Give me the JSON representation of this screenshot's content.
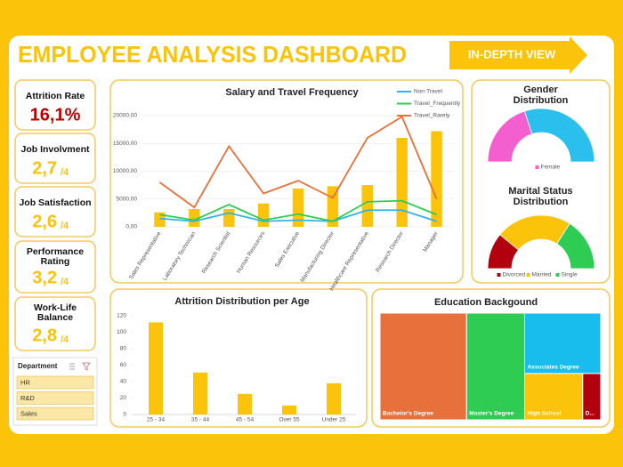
{
  "header": {
    "title": "EMPLOYEE ANALYSIS DASHBOARD",
    "button": "IN-DEPTH VIEW"
  },
  "kpis": [
    {
      "label": "Attrition Rate",
      "value": "16,1%"
    },
    {
      "label": "Job Involvment",
      "value": "2,7",
      "out_of": "/4"
    },
    {
      "label": "Job Satisfaction",
      "value": "2,6",
      "out_of": "/4"
    },
    {
      "label": "Performance Rating",
      "value": "3,2",
      "out_of": "/4"
    },
    {
      "label": "Work-Life Balance",
      "value": "2,8",
      "out_of": "/4"
    }
  ],
  "slicer": {
    "title": "Department",
    "items": [
      "HR",
      "R&D",
      "Sales"
    ]
  },
  "chart_data": [
    {
      "type": "combo",
      "title": "Salary and Travel Frequency",
      "categories": [
        "Sales Representative",
        "Laboratory Technician",
        "Research Scientist",
        "Human Resources",
        "Sales Executive",
        "Manufacturing Director",
        "Healthcare Representative",
        "Research Director",
        "Manager"
      ],
      "series": [
        {
          "color": "#fbc30a",
          "kind": "bar",
          "values": [
            2600,
            3200,
            3200,
            4200,
            6900,
            7300,
            7500,
            16000,
            17200
          ]
        },
        {
          "name": "Non-Travel",
          "color": "#2bb5e8",
          "kind": "line",
          "values": [
            1500,
            1000,
            2500,
            1000,
            1200,
            1000,
            3000,
            3000,
            1000
          ]
        },
        {
          "name": "Travel_Frequently",
          "color": "#2ecc52",
          "kind": "line",
          "values": [
            2200,
            1200,
            4000,
            1200,
            2300,
            1000,
            4500,
            4700,
            2200
          ]
        },
        {
          "name": "Travel_Rarely",
          "color": "#e8703a",
          "kind": "line",
          "values": [
            8000,
            3500,
            14500,
            6000,
            8300,
            5200,
            16000,
            19800,
            5000
          ]
        }
      ],
      "ylim": [
        0,
        20000
      ],
      "yticks": [
        {
          "value": 0,
          "label": "0,00"
        },
        {
          "value": 5000,
          "label": "5000,00"
        },
        {
          "value": 10000,
          "label": "10000,00"
        },
        {
          "value": 15000,
          "label": "15000,00"
        },
        {
          "value": 20000,
          "label": "20000,00"
        }
      ],
      "grid": true,
      "legend": "top-right"
    },
    {
      "type": "gauge",
      "title": "Gender Distribution",
      "categories": [
        "Female",
        null
      ],
      "values": [
        40,
        60
      ],
      "colors": [
        "#f45fcf",
        "#2bbfee"
      ]
    },
    {
      "type": "gauge",
      "title": "Marital Status Distribution",
      "categories": [
        "Divorced",
        "Married",
        "Single"
      ],
      "values": [
        22,
        46,
        32
      ],
      "colors": [
        "#b3000f",
        "#fbc30a",
        "#2ecc52"
      ]
    },
    {
      "type": "bar",
      "title": "Attrition Distribution per Age",
      "categories": [
        "25 - 34",
        "35 - 44",
        "45 - 54",
        "Over 55",
        "Under 25"
      ],
      "values": [
        112,
        51,
        25,
        11,
        38
      ],
      "color": "#fbc30a",
      "ylim": [
        0,
        120
      ],
      "yticks": [
        0,
        20,
        40,
        60,
        80,
        100,
        120
      ]
    },
    {
      "type": "treemap",
      "title": "Education Backgound",
      "categories": [
        "Bachelor's Degree",
        "Master's Degree",
        "Associates Degree",
        "High School",
        "D..."
      ],
      "values": [
        38.8,
        26,
        19.3,
        11.3,
        3.5
      ],
      "colors": [
        "#e8703a",
        "#2ecc52",
        "#18bdee",
        "#fbc30a",
        "#b3000f"
      ]
    }
  ]
}
